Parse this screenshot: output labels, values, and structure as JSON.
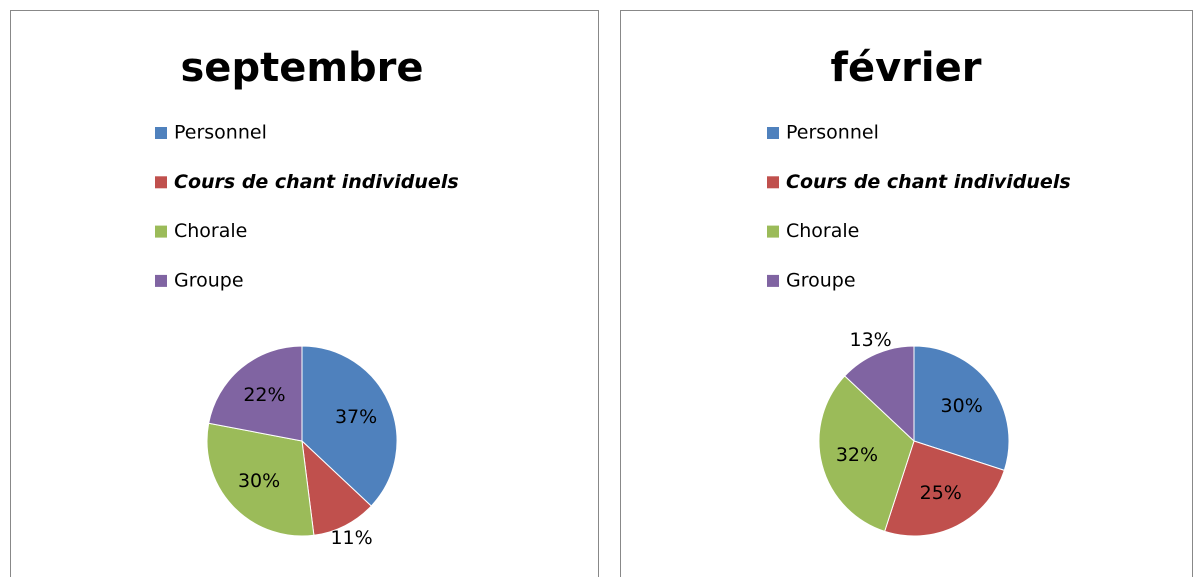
{
  "chart_data": [
    {
      "type": "pie",
      "title": "septembre",
      "categories": [
        "Personnel",
        "Cours de chant individuels",
        "Chorale",
        "Groupe"
      ],
      "values": [
        37,
        11,
        30,
        22
      ],
      "value_labels": [
        "37%",
        "11%",
        "30%",
        "22%"
      ],
      "colors": [
        "#4f81bd",
        "#c0504d",
        "#9bbb59",
        "#8064a2"
      ]
    },
    {
      "type": "pie",
      "title": "février",
      "categories": [
        "Personnel",
        "Cours de chant individuels",
        "Chorale",
        "Groupe"
      ],
      "values": [
        30,
        25,
        32,
        13
      ],
      "value_labels": [
        "30%",
        "25%",
        "32%",
        "13%"
      ],
      "colors": [
        "#4f81bd",
        "#c0504d",
        "#9bbb59",
        "#8064a2"
      ]
    }
  ]
}
